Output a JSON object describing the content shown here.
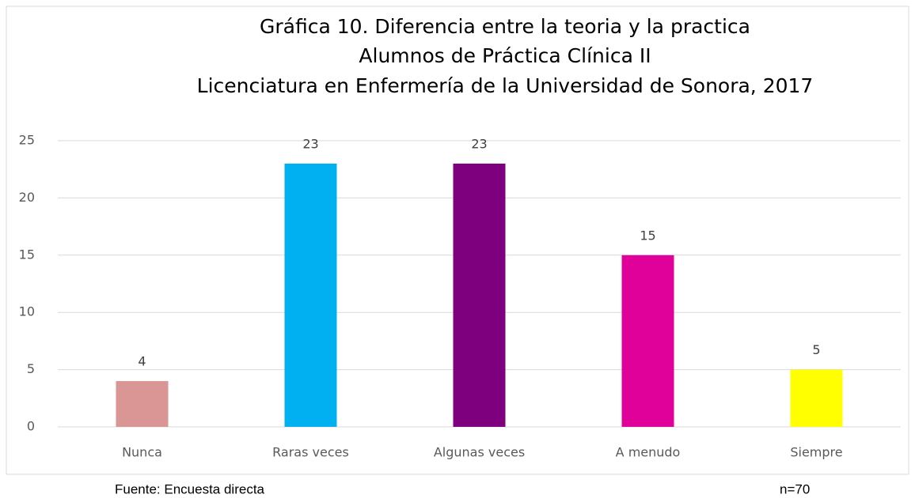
{
  "chart_data": {
    "type": "bar",
    "title": [
      "Gráfica 10. Diferencia entre la teoria y la practica",
      "Alumnos de Práctica Clínica II",
      "Licenciatura en Enfermería de la Universidad de Sonora, 2017"
    ],
    "categories": [
      "Nunca",
      "Raras veces",
      "Algunas veces",
      "A menudo",
      "Siempre"
    ],
    "values": [
      4,
      23,
      23,
      15,
      5
    ],
    "colors": [
      "#d99694",
      "#00b0f0",
      "#7f007f",
      "#e0009a",
      "#ffff00"
    ],
    "ylim": [
      0,
      25
    ],
    "yticks": [
      0,
      5,
      10,
      15,
      20,
      25
    ],
    "grid": true,
    "source": "Fuente: Encuesta directa",
    "note": "n=70"
  }
}
